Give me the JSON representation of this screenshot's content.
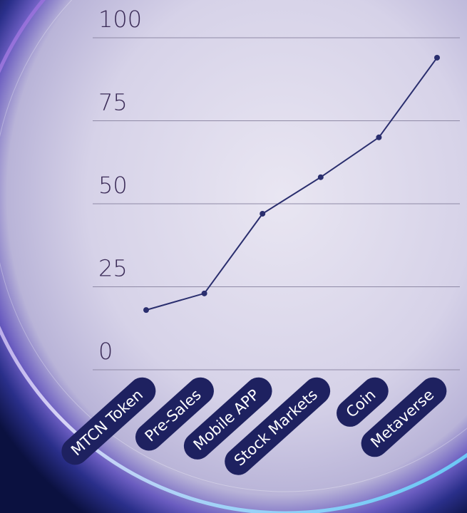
{
  "chart_data": {
    "type": "line",
    "categories": [
      "MTCN Token",
      "Pre-Sales",
      "Mobile APP",
      "Stock Markets",
      "Coin",
      "Metaverse"
    ],
    "series": [
      {
        "color": "#2a2e6e",
        "values": [
          18,
          23,
          47,
          58,
          70,
          94
        ]
      }
    ],
    "ylim": [
      0,
      100
    ],
    "yticks": [
      0,
      25,
      50,
      75,
      100
    ],
    "grid": true
  }
}
